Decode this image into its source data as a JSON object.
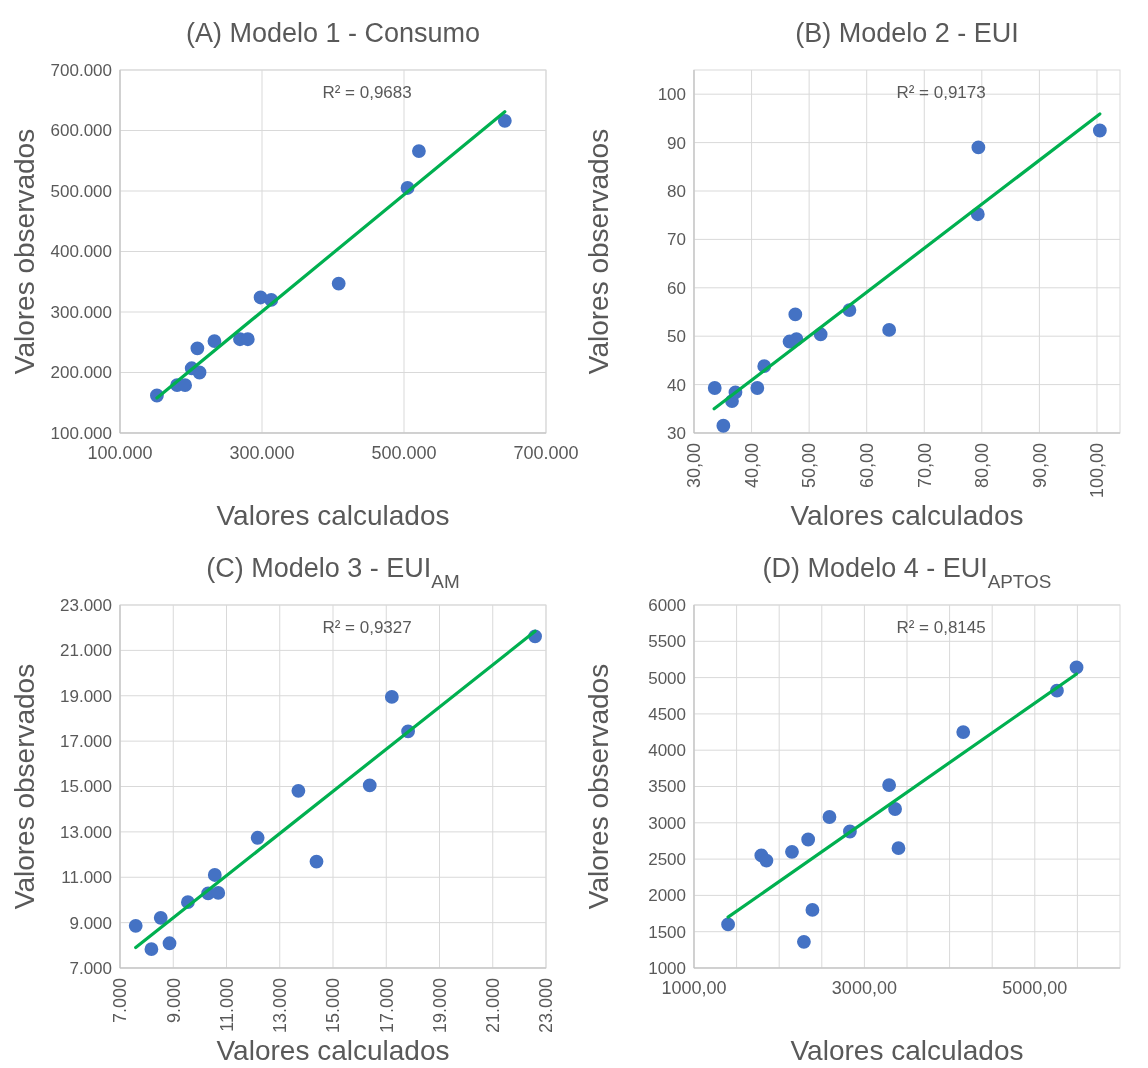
{
  "chart_data": [
    {
      "type": "scatter",
      "title": "(A) Modelo 1 - Consumo",
      "xlabel": "Valores calculados",
      "ylabel": "Valores observados",
      "xlim": [
        100000,
        700000
      ],
      "ylim": [
        100000,
        700000
      ],
      "xticks": [
        {
          "value": 100000,
          "label": "100.000"
        },
        {
          "value": 300000,
          "label": "300.000"
        },
        {
          "value": 500000,
          "label": "500.000"
        },
        {
          "value": 700000,
          "label": "700.000"
        }
      ],
      "yticks": [
        {
          "value": 100000,
          "label": "100.000"
        },
        {
          "value": 200000,
          "label": "200.000"
        },
        {
          "value": 300000,
          "label": "300.000"
        },
        {
          "value": 400000,
          "label": "400.000"
        },
        {
          "value": 500000,
          "label": "500.000"
        },
        {
          "value": 600000,
          "label": "600.000"
        },
        {
          "value": 700000,
          "label": "700.000"
        }
      ],
      "grid": true,
      "annotations": [
        "R² = 0,9683"
      ],
      "series": [
        {
          "marker": "circle",
          "color": "#4472c4",
          "x": [
            152000,
            180400,
            191700,
            209000,
            201000,
            212000,
            233000,
            269000,
            280000,
            298000,
            313000,
            408000,
            505000,
            521000,
            642000
          ],
          "values": [
            162000,
            179000,
            179000,
            240000,
            207000,
            200000,
            252000,
            255000,
            255000,
            324000,
            320000,
            347000,
            505000,
            566000,
            616000
          ]
        },
        {
          "type": "line",
          "color": "#00b050",
          "x": [
            152000,
            642000
          ],
          "values": [
            158000,
            631000
          ]
        }
      ]
    },
    {
      "type": "scatter",
      "title": "(B) Modelo 2 - EUI",
      "xlabel": "Valores calculados",
      "ylabel": "Valores observados",
      "xlim": [
        30,
        104
      ],
      "ylim": [
        30,
        105
      ],
      "xticks": [
        {
          "value": 30,
          "label": "30,00"
        },
        {
          "value": 40,
          "label": "40,00"
        },
        {
          "value": 50,
          "label": "50,00"
        },
        {
          "value": 60,
          "label": "60,00"
        },
        {
          "value": 70,
          "label": "70,00"
        },
        {
          "value": 80,
          "label": "80,00"
        },
        {
          "value": 90,
          "label": "90,00"
        },
        {
          "value": 100,
          "label": "100,00"
        }
      ],
      "yticks": [
        30,
        40,
        50,
        60,
        70,
        80,
        90,
        100
      ],
      "grid": true,
      "annotations": [
        "R² = 0,9173"
      ],
      "series": [
        {
          "marker": "circle",
          "color": "#4472c4",
          "x": [
            33.6,
            35.1,
            36.6,
            37.2,
            41.0,
            42.2,
            46.6,
            47.8,
            47.6,
            52.0,
            57.0,
            63.9,
            79.3,
            79.4,
            100.5
          ],
          "values": [
            39.3,
            31.5,
            36.6,
            38.4,
            39.3,
            43.8,
            48.9,
            49.4,
            54.5,
            50.4,
            55.4,
            51.3,
            75.2,
            89.0,
            92.5
          ]
        },
        {
          "type": "line",
          "color": "#00b050",
          "x": [
            33.5,
            100.5
          ],
          "values": [
            35.0,
            95.9
          ]
        }
      ]
    },
    {
      "type": "scatter",
      "title": "(C) Modelo 3 - EUI$_{AM}$",
      "xlabel": "Valores calculados",
      "ylabel": "Valores observados",
      "xlim": [
        7000,
        23000
      ],
      "ylim": [
        7000,
        23000
      ],
      "xticks": [
        {
          "value": 7000,
          "label": "7.000"
        },
        {
          "value": 9000,
          "label": "9.000"
        },
        {
          "value": 11000,
          "label": "11.000"
        },
        {
          "value": 13000,
          "label": "13.000"
        },
        {
          "value": 15000,
          "label": "15.000"
        },
        {
          "value": 17000,
          "label": "17.000"
        },
        {
          "value": 19000,
          "label": "19.000"
        },
        {
          "value": 21000,
          "label": "21.000"
        },
        {
          "value": 23000,
          "label": "23.000"
        }
      ],
      "yticks": [
        {
          "value": 7000,
          "label": "7.000"
        },
        {
          "value": 9000,
          "label": "9.000"
        },
        {
          "value": 11000,
          "label": "11.000"
        },
        {
          "value": 13000,
          "label": "13.000"
        },
        {
          "value": 15000,
          "label": "15.000"
        },
        {
          "value": 17000,
          "label": "17.000"
        },
        {
          "value": 19000,
          "label": "19.000"
        },
        {
          "value": 21000,
          "label": "21.000"
        },
        {
          "value": 23000,
          "label": "23.000"
        }
      ],
      "grid": true,
      "annotations": [
        "R² = 0,9327"
      ],
      "series": [
        {
          "marker": "circle",
          "color": "#4472c4",
          "x": [
            7590,
            8180,
            8530,
            8860,
            9550,
            10310,
            10560,
            10690,
            12170,
            13700,
            14380,
            16380,
            17210,
            17820,
            22590
          ],
          "values": [
            8860,
            7830,
            9210,
            8090,
            9900,
            10290,
            11100,
            10310,
            12740,
            14810,
            11690,
            15050,
            18950,
            17430,
            21620
          ]
        },
        {
          "type": "line",
          "color": "#00b050",
          "x": [
            7590,
            22590
          ],
          "values": [
            7900,
            21840
          ]
        }
      ]
    },
    {
      "type": "scatter",
      "title": "(D) Modelo 4 - EUI$_{APTOS}$",
      "xlabel": "Valores calculados",
      "ylabel": "Valores observados",
      "xlim": [
        1000,
        6000
      ],
      "ylim": [
        1000,
        6000
      ],
      "xticks": [
        {
          "value": 1000,
          "label": "1000,00"
        },
        {
          "value": 1500,
          "label": null
        },
        {
          "value": 2000,
          "label": null
        },
        {
          "value": 2500,
          "label": null
        },
        {
          "value": 3000,
          "label": "3000,00"
        },
        {
          "value": 3500,
          "label": null
        },
        {
          "value": 4000,
          "label": null
        },
        {
          "value": 4500,
          "label": null
        },
        {
          "value": 5000,
          "label": "5000,00"
        },
        {
          "value": 5500,
          "label": null
        }
      ],
      "yticks": [
        1000,
        1500,
        2000,
        2500,
        3000,
        3500,
        4000,
        4500,
        5000,
        5500,
        6000
      ],
      "grid": true,
      "annotations": [
        "R² = 0,8145"
      ],
      "series": [
        {
          "marker": "circle",
          "color": "#4472c4",
          "x": [
            1400,
            1790,
            1850,
            2150,
            2290,
            2340,
            2390,
            2590,
            2830,
            3290,
            3360,
            3400,
            4160,
            5260,
            5490
          ],
          "values": [
            1600,
            2550,
            2480,
            2600,
            1360,
            2770,
            1800,
            3080,
            2880,
            3520,
            3190,
            2650,
            4250,
            4820,
            5140
          ]
        },
        {
          "type": "line",
          "color": "#00b050",
          "x": [
            1400,
            5490
          ],
          "values": [
            1700,
            5050
          ]
        }
      ]
    }
  ]
}
